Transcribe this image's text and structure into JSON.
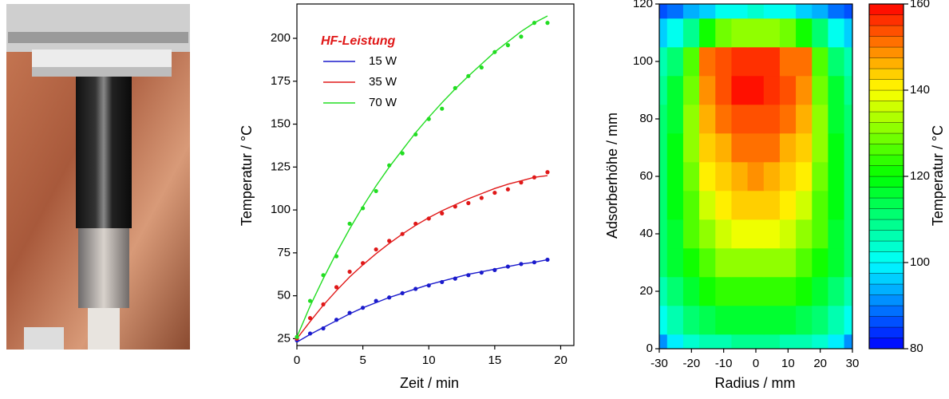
{
  "chart_data": [
    {
      "type": "scatter",
      "xlabel": "Zeit / min",
      "ylabel": "Temperatur / °C",
      "legend_title": "HF-Leistung",
      "x": [
        0,
        1,
        2,
        3,
        4,
        5,
        6,
        7,
        8,
        9,
        10,
        11,
        12,
        13,
        14,
        15,
        16,
        17,
        18,
        19
      ],
      "xlim": [
        0,
        21
      ],
      "xticks": [
        0,
        5,
        10,
        15,
        20
      ],
      "ylim": [
        21,
        220
      ],
      "yticks": [
        25,
        50,
        75,
        100,
        125,
        150,
        175,
        200
      ],
      "series": [
        {
          "name": "15 W",
          "color": "#1a1acc",
          "values": [
            24,
            28,
            31,
            36,
            40,
            43,
            47,
            49,
            51.5,
            54,
            56,
            58,
            60,
            62,
            63.5,
            65,
            67,
            68.5,
            69.5,
            71
          ],
          "fit": [
            23,
            27.5,
            31.5,
            35.5,
            39.5,
            43,
            46,
            49,
            51.5,
            54,
            56.5,
            58.5,
            60.5,
            62.5,
            64,
            65.5,
            67,
            68.5,
            69.5,
            71
          ]
        },
        {
          "name": "35 W",
          "color": "#e01818",
          "values": [
            25,
            37,
            45,
            55,
            64,
            69,
            77,
            82,
            86,
            92,
            95,
            98,
            102,
            104,
            107,
            110,
            112,
            116,
            119,
            122
          ],
          "fit": [
            25,
            35,
            44.5,
            53,
            61,
            68,
            74.5,
            80.5,
            86,
            91,
            95.5,
            99.5,
            103,
            106.5,
            109.5,
            112.5,
            115,
            117,
            119,
            120
          ]
        },
        {
          "name": "70 W",
          "color": "#22dd22",
          "values": [
            26,
            47,
            62,
            73,
            92,
            101,
            111,
            126,
            133,
            144,
            153,
            159,
            171,
            178,
            183,
            192,
            196,
            201,
            209,
            209
          ],
          "fit": [
            26,
            44,
            60,
            75,
            89,
            102,
            114,
            125,
            135,
            145,
            154,
            162.5,
            170.5,
            178,
            185,
            192,
            198,
            204,
            209,
            213
          ]
        }
      ]
    },
    {
      "type": "contour",
      "xlabel": "Radius / mm",
      "ylabel": "Adsorberhöhe / mm",
      "colorbar_label": "Temperatur / °C",
      "xlim": [
        -30,
        30
      ],
      "xticks": [
        -30,
        -20,
        -10,
        0,
        10,
        20,
        30
      ],
      "ylim": [
        0,
        120
      ],
      "yticks": [
        0,
        20,
        40,
        60,
        80,
        100,
        120
      ],
      "zlim": [
        80,
        160
      ],
      "zticks": [
        80,
        100,
        120,
        140,
        160
      ],
      "x": [
        -30,
        -25,
        -20,
        -15,
        -10,
        -5,
        0,
        5,
        10,
        15,
        20,
        25,
        30
      ],
      "y": [
        0,
        10,
        20,
        30,
        40,
        50,
        60,
        70,
        80,
        90,
        100,
        110,
        120
      ],
      "z": [
        [
          92,
          98,
          103,
          106,
          107,
          108,
          108,
          108,
          107,
          106,
          103,
          98,
          92
        ],
        [
          100,
          105,
          110,
          114,
          115,
          116,
          116,
          116,
          115,
          114,
          110,
          105,
          100
        ],
        [
          106,
          111,
          117,
          121,
          123,
          124,
          124,
          124,
          123,
          121,
          117,
          111,
          106
        ],
        [
          110,
          115,
          122,
          127,
          130,
          132,
          132,
          132,
          130,
          127,
          122,
          115,
          110
        ],
        [
          112,
          117,
          125,
          132,
          136,
          138,
          139,
          138,
          136,
          132,
          125,
          117,
          112
        ],
        [
          112,
          118,
          127,
          136,
          140,
          143,
          144,
          143,
          140,
          136,
          127,
          118,
          112
        ],
        [
          112,
          118,
          129,
          140,
          144,
          147,
          148,
          147,
          144,
          140,
          129,
          118,
          112
        ],
        [
          111,
          118,
          130,
          143,
          147,
          150,
          151,
          150,
          147,
          143,
          130,
          118,
          111
        ],
        [
          110,
          117,
          130,
          146,
          150,
          153,
          154,
          153,
          150,
          146,
          130,
          117,
          110
        ],
        [
          108,
          115,
          128,
          148,
          153,
          158,
          158,
          157,
          153,
          148,
          128,
          115,
          108
        ],
        [
          105,
          112,
          125,
          150,
          153,
          156,
          155,
          155,
          152,
          150,
          125,
          112,
          105
        ],
        [
          95,
          100,
          108,
          120,
          128,
          130,
          130,
          130,
          128,
          120,
          110,
          100,
          95
        ],
        [
          85,
          88,
          93,
          97,
          100,
          102,
          103,
          102,
          100,
          97,
          93,
          88,
          85
        ]
      ]
    }
  ]
}
